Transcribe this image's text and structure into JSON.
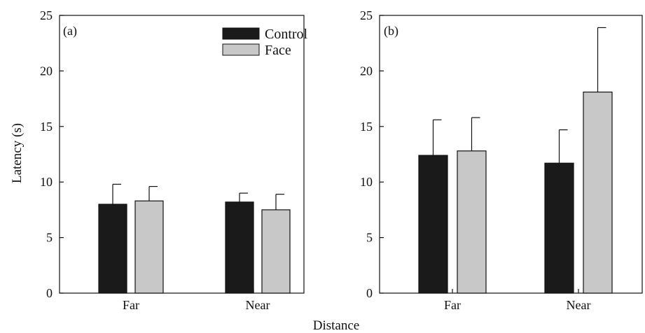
{
  "figure": {
    "ylabel": "Latency (s)",
    "xlabel": "Distance",
    "legend": {
      "placement": "top-right of panel (a)",
      "entries": [
        {
          "label": "Control",
          "color": "#1a1a1a"
        },
        {
          "label": "Face",
          "color": "#c8c8c8"
        }
      ]
    }
  },
  "chart_data": [
    {
      "type": "bar",
      "panel_label": "(a)",
      "categories": [
        "Far",
        "Near"
      ],
      "series": [
        {
          "name": "Control",
          "color": "#1a1a1a",
          "values": [
            8.0,
            8.2
          ],
          "error": [
            1.8,
            0.8
          ]
        },
        {
          "name": "Face",
          "color": "#c8c8c8",
          "values": [
            8.3,
            7.5
          ],
          "error": [
            1.3,
            1.4
          ]
        }
      ],
      "ylim": [
        0,
        25
      ],
      "yticks": [
        0,
        5,
        10,
        15,
        20,
        25
      ],
      "grid": false,
      "legend": "top-right"
    },
    {
      "type": "bar",
      "panel_label": "(b)",
      "categories": [
        "Far",
        "Near"
      ],
      "series": [
        {
          "name": "Control",
          "color": "#1a1a1a",
          "values": [
            12.4,
            11.7
          ],
          "error": [
            3.2,
            3.0
          ]
        },
        {
          "name": "Face",
          "color": "#c8c8c8",
          "values": [
            12.8,
            18.1
          ],
          "error": [
            3.0,
            5.8
          ]
        }
      ],
      "ylim": [
        0,
        25
      ],
      "yticks": [
        0,
        5,
        10,
        15,
        20,
        25
      ],
      "grid": false
    }
  ]
}
